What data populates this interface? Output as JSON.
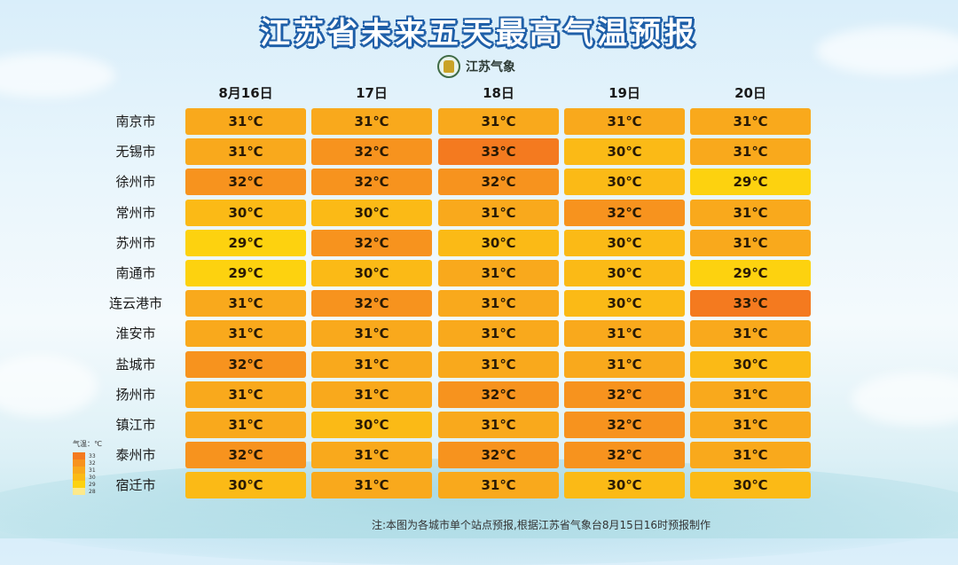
{
  "title": "江苏省未来五天最高气温预报",
  "logo_text": "江苏气象",
  "footnote": "注:本图为各城市单个站点预报,根据江苏省气象台8月15日16时预报制作",
  "legend": {
    "title": "气温：℃",
    "items": [
      {
        "value": "33",
        "color": "#f47a1f"
      },
      {
        "value": "32",
        "color": "#f7931e"
      },
      {
        "value": "31",
        "color": "#f9a91c"
      },
      {
        "value": "30",
        "color": "#fbba16"
      },
      {
        "value": "29",
        "color": "#fdd20f"
      },
      {
        "value": "28",
        "color": "#fde98a"
      }
    ]
  },
  "colors": {
    "33": "#f47a1f",
    "32": "#f7931e",
    "31": "#f9a91c",
    "30": "#fbba16",
    "29": "#fdd20f"
  },
  "chart_data": {
    "type": "table",
    "title": "江苏省未来五天最高气温预报",
    "unit": "℃",
    "columns": [
      "8月16日",
      "17日",
      "18日",
      "19日",
      "20日"
    ],
    "rows": [
      {
        "city": "南京市",
        "values": [
          31,
          31,
          31,
          31,
          31
        ]
      },
      {
        "city": "无锡市",
        "values": [
          31,
          32,
          33,
          30,
          31
        ]
      },
      {
        "city": "徐州市",
        "values": [
          32,
          32,
          32,
          30,
          29
        ]
      },
      {
        "city": "常州市",
        "values": [
          30,
          30,
          31,
          32,
          31
        ]
      },
      {
        "city": "苏州市",
        "values": [
          29,
          32,
          30,
          30,
          31
        ]
      },
      {
        "city": "南通市",
        "values": [
          29,
          30,
          31,
          30,
          29
        ]
      },
      {
        "city": "连云港市",
        "values": [
          31,
          32,
          31,
          30,
          33
        ]
      },
      {
        "city": "淮安市",
        "values": [
          31,
          31,
          31,
          31,
          31
        ]
      },
      {
        "city": "盐城市",
        "values": [
          32,
          31,
          31,
          31,
          30
        ]
      },
      {
        "city": "扬州市",
        "values": [
          31,
          31,
          32,
          32,
          31
        ]
      },
      {
        "city": "镇江市",
        "values": [
          31,
          30,
          31,
          32,
          31
        ]
      },
      {
        "city": "泰州市",
        "values": [
          32,
          31,
          32,
          32,
          31
        ]
      },
      {
        "city": "宿迁市",
        "values": [
          30,
          31,
          31,
          30,
          30
        ]
      }
    ]
  }
}
